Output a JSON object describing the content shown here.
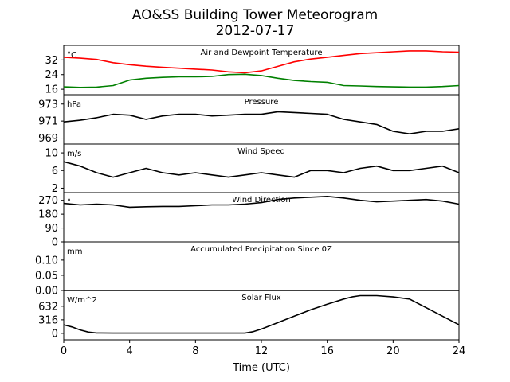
{
  "title_line1": "AO&SS Building Tower Meteorogram",
  "title_line2": "2012-07-17",
  "x_axis": {
    "label": "Time (UTC)",
    "ticks": [
      0,
      4,
      8,
      12,
      16,
      20,
      24
    ],
    "range": [
      0,
      24
    ]
  },
  "colors": {
    "temperature": "#ff0000",
    "dewpoint": "#008000",
    "default": "#000000"
  },
  "chart_data": [
    {
      "type": "line",
      "title": "Air and Dewpoint Temperature",
      "unit": "°C",
      "ylim": [
        13,
        40
      ],
      "yticks": [
        16,
        24,
        32
      ],
      "x": [
        0,
        1,
        2,
        3,
        4,
        5,
        6,
        7,
        8,
        9,
        10,
        11,
        12,
        13,
        14,
        15,
        16,
        17,
        18,
        19,
        20,
        21,
        22,
        23,
        24
      ],
      "series": [
        {
          "name": "Air Temperature",
          "color": "#ff0000",
          "values": [
            33.5,
            33,
            32.3,
            30.5,
            29.4,
            28.6,
            28,
            27.5,
            27,
            26.5,
            25.5,
            25,
            26,
            28.5,
            31,
            32.5,
            33.5,
            34.5,
            35.5,
            36,
            36.5,
            37,
            37,
            36.5,
            36.3
          ]
        },
        {
          "name": "Dewpoint",
          "color": "#008000",
          "values": [
            17.3,
            17,
            17.2,
            18,
            21,
            22,
            22.5,
            22.8,
            22.8,
            23,
            24,
            24.2,
            23.5,
            22,
            20.8,
            20.2,
            19.8,
            18,
            17.8,
            17.5,
            17.3,
            17.2,
            17.2,
            17.5,
            18
          ]
        }
      ]
    },
    {
      "type": "line",
      "title": "Pressure",
      "unit": "hPa",
      "ylim": [
        968.3,
        974.1
      ],
      "yticks": [
        969,
        971,
        973
      ],
      "x": [
        0,
        1,
        2,
        3,
        4,
        5,
        6,
        7,
        8,
        9,
        10,
        11,
        12,
        13,
        14,
        15,
        16,
        17,
        18,
        19,
        20,
        21,
        22,
        23,
        24
      ],
      "series": [
        {
          "name": "Pressure",
          "color": "#000000",
          "values": [
            970.9,
            971.1,
            971.4,
            971.8,
            971.7,
            971.2,
            971.6,
            971.8,
            971.8,
            971.6,
            971.7,
            971.8,
            971.8,
            972.1,
            972,
            971.9,
            971.8,
            971.2,
            970.9,
            970.6,
            969.8,
            969.5,
            969.8,
            969.8,
            970.1
          ]
        }
      ]
    },
    {
      "type": "line",
      "title": "Wind Speed",
      "unit": "m/s",
      "ylim": [
        1,
        12
      ],
      "yticks": [
        2,
        6,
        10
      ],
      "x": [
        0,
        1,
        2,
        3,
        4,
        5,
        6,
        7,
        8,
        9,
        10,
        11,
        12,
        13,
        14,
        15,
        16,
        17,
        18,
        19,
        20,
        21,
        22,
        23,
        24
      ],
      "series": [
        {
          "name": "Wind Speed",
          "color": "#000000",
          "values": [
            8,
            7,
            5.5,
            4.5,
            5.5,
            6.5,
            5.5,
            5,
            5.5,
            5,
            4.5,
            5,
            5.5,
            5,
            4.5,
            6,
            6,
            5.5,
            6.5,
            7,
            6,
            6,
            6.5,
            7,
            5.5
          ]
        }
      ]
    },
    {
      "type": "line",
      "title": "Wind Direction",
      "unit": "°",
      "ylim": [
        0,
        320
      ],
      "yticks": [
        0,
        90,
        180,
        270
      ],
      "x": [
        0,
        1,
        2,
        3,
        4,
        5,
        6,
        7,
        8,
        9,
        10,
        11,
        12,
        13,
        14,
        15,
        16,
        17,
        18,
        19,
        20,
        21,
        22,
        23,
        24
      ],
      "series": [
        {
          "name": "Wind Direction",
          "color": "#000000",
          "values": [
            250,
            240,
            245,
            240,
            225,
            228,
            230,
            230,
            235,
            240,
            240,
            245,
            255,
            275,
            285,
            290,
            295,
            285,
            270,
            260,
            265,
            270,
            275,
            265,
            245
          ]
        }
      ]
    },
    {
      "type": "line",
      "title": "Accumulated Precipitation Since 0Z",
      "unit": "mm",
      "ylim": [
        0,
        0.16
      ],
      "yticks": [
        0.0,
        0.05,
        0.1
      ],
      "ytick_labels": [
        "0.00",
        "0.05",
        "0.10"
      ],
      "x": [
        0,
        24
      ],
      "series": [
        {
          "name": "Accumulated Precipitation",
          "color": "#000000",
          "values": [
            0,
            0
          ]
        }
      ]
    },
    {
      "type": "line",
      "title": "Solar Flux",
      "unit": "W/m^2",
      "ylim": [
        -150,
        1000
      ],
      "yticks": [
        0,
        316,
        632
      ],
      "x": [
        0,
        0.5,
        1,
        1.5,
        2,
        3,
        4,
        6,
        8,
        10,
        11,
        11.5,
        12,
        13,
        14,
        15,
        16,
        17,
        17.5,
        18,
        19,
        20,
        21,
        22,
        23,
        24
      ],
      "series": [
        {
          "name": "Solar Flux",
          "color": "#000000",
          "values": [
            200,
            150,
            80,
            30,
            10,
            5,
            5,
            5,
            5,
            5,
            5,
            40,
            100,
            250,
            400,
            550,
            680,
            800,
            850,
            880,
            880,
            850,
            800,
            600,
            400,
            200
          ]
        }
      ]
    }
  ]
}
